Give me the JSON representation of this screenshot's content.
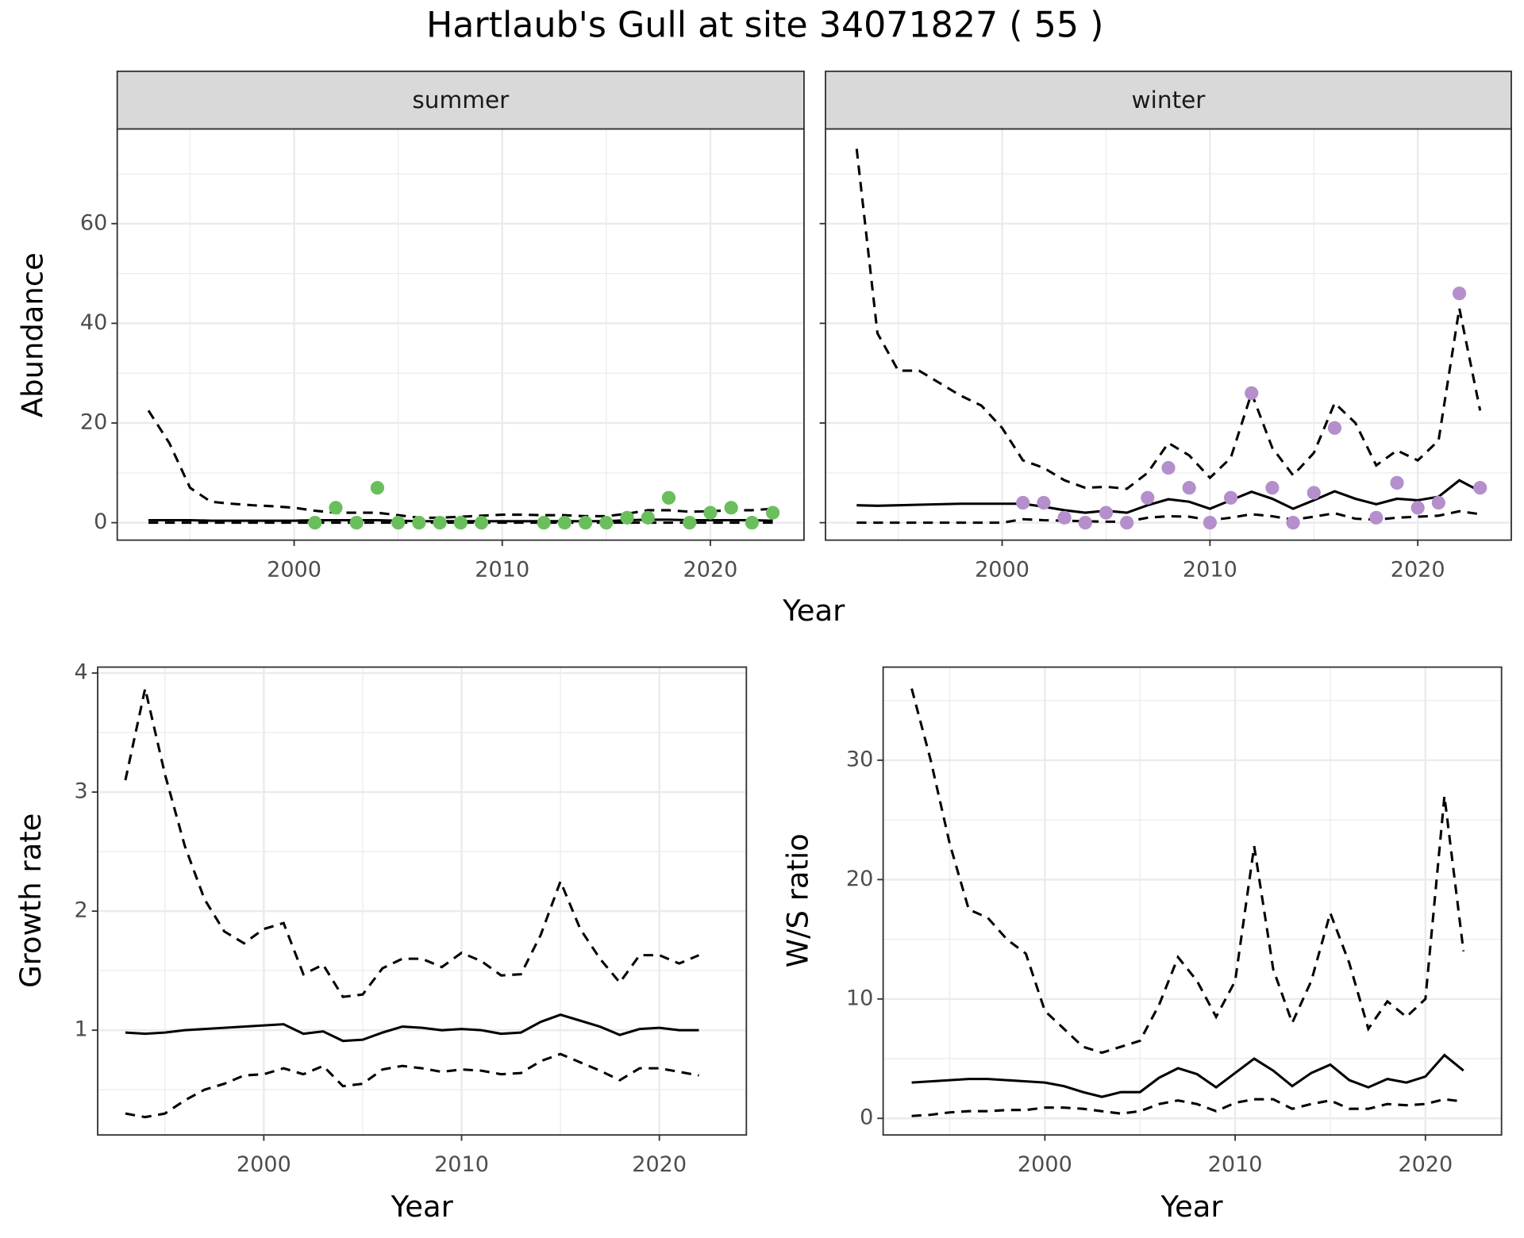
{
  "title": "Hartlaub's Gull at site 34071827 ( 55 )",
  "chart_data": [
    {
      "type": "line",
      "facet": "summer",
      "xlabel": "Year",
      "ylabel": "Abundance",
      "xlim": [
        1991.5,
        2024.5
      ],
      "xticks": [
        2000,
        2010,
        2020
      ],
      "xminor": [
        1995,
        2005,
        2015
      ],
      "ylim": [
        -3.5,
        79
      ],
      "yticks": [
        0,
        20,
        40,
        60
      ],
      "yminor": [
        10,
        30,
        50,
        70
      ],
      "grid": true,
      "x": [
        1993,
        1994,
        1995,
        1996,
        1997,
        1998,
        1999,
        2000,
        2001,
        2002,
        2003,
        2004,
        2005,
        2006,
        2007,
        2008,
        2009,
        2010,
        2011,
        2012,
        2013,
        2014,
        2015,
        2016,
        2017,
        2018,
        2019,
        2020,
        2021,
        2022,
        2023
      ],
      "series": [
        {
          "color": "#000000",
          "dash": "dashed",
          "values": [
            22.5,
            16,
            7,
            4.2,
            3.8,
            3.5,
            3.3,
            3,
            2.4,
            2,
            2,
            2,
            1.5,
            1,
            1,
            1.2,
            1.4,
            1.6,
            1.6,
            1.5,
            1.5,
            1.3,
            1.3,
            1.8,
            2.5,
            2.5,
            2.2,
            2.3,
            2.5,
            2.5,
            2.8
          ]
        },
        {
          "color": "#000000",
          "dash": "solid",
          "values": [
            0.5,
            0.5,
            0.5,
            0.4,
            0.4,
            0.4,
            0.4,
            0.4,
            0.5,
            0.5,
            0.5,
            0.5,
            0.4,
            0.3,
            0.3,
            0.3,
            0.3,
            0.3,
            0.3,
            0.3,
            0.3,
            0.3,
            0.3,
            0.5,
            0.6,
            0.6,
            0.5,
            0.5,
            0.5,
            0.5,
            0.4
          ]
        },
        {
          "color": "#000000",
          "dash": "dashed",
          "values": [
            0,
            0,
            0,
            0,
            0,
            0,
            0,
            0,
            0,
            0,
            0,
            0,
            0,
            0,
            0,
            0,
            0,
            0,
            0,
            0,
            0,
            0,
            0,
            0,
            0,
            0,
            0,
            0,
            0,
            0,
            0
          ]
        },
        {
          "color": "#6ABF5C",
          "marker": "point",
          "x": [
            2001,
            2002,
            2003,
            2004,
            2005,
            2006,
            2007,
            2008,
            2009,
            2012,
            2013,
            2014,
            2015,
            2016,
            2017,
            2018,
            2019,
            2020,
            2021,
            2022,
            2023
          ],
          "values": [
            0,
            3,
            0,
            7,
            0,
            0,
            0,
            0,
            0,
            0,
            0,
            0,
            0,
            1,
            1,
            5,
            0,
            2,
            3,
            0,
            2
          ]
        }
      ]
    },
    {
      "type": "line",
      "facet": "winter",
      "sharey": true,
      "xlim": [
        1991.5,
        2024.5
      ],
      "xticks": [
        2000,
        2010,
        2020
      ],
      "xminor": [
        1995,
        2005,
        2015
      ],
      "x": [
        1993,
        1994,
        1995,
        1996,
        1997,
        1998,
        1999,
        2000,
        2001,
        2002,
        2003,
        2004,
        2005,
        2006,
        2007,
        2008,
        2009,
        2010,
        2011,
        2012,
        2013,
        2014,
        2015,
        2016,
        2017,
        2018,
        2019,
        2020,
        2021,
        2022,
        2023
      ],
      "series": [
        {
          "color": "#000000",
          "dash": "dashed",
          "values": [
            75,
            38,
            30.5,
            30.5,
            28,
            25.5,
            23.5,
            19,
            12.5,
            11,
            8.5,
            7,
            7.2,
            6.8,
            10,
            16,
            13.5,
            9,
            13,
            26,
            15,
            9.5,
            14,
            24,
            20,
            11.5,
            14.5,
            12.5,
            16.5,
            43,
            22.5
          ]
        },
        {
          "color": "#000000",
          "dash": "solid",
          "values": [
            3.5,
            3.4,
            3.5,
            3.6,
            3.7,
            3.8,
            3.8,
            3.8,
            3.8,
            3.2,
            2.5,
            2,
            2.4,
            2,
            3.5,
            4.7,
            4.2,
            2.8,
            4.5,
            6.2,
            4.8,
            2.8,
            4.5,
            6.3,
            4.8,
            3.7,
            4.8,
            4.5,
            5.2,
            8.5,
            6.3
          ]
        },
        {
          "color": "#000000",
          "dash": "dashed",
          "values": [
            0,
            0,
            0,
            0,
            0,
            0,
            0,
            0,
            0.7,
            0.5,
            0.4,
            0.3,
            0.2,
            0.2,
            1,
            1.3,
            1.2,
            0.5,
            1,
            1.7,
            1.3,
            0.6,
            1.2,
            1.9,
            0.8,
            0.6,
            1,
            1.2,
            1.4,
            2.3,
            1.7
          ]
        },
        {
          "color": "#B48FCC",
          "marker": "point",
          "x": [
            2001,
            2002,
            2003,
            2004,
            2005,
            2006,
            2007,
            2008,
            2009,
            2010,
            2011,
            2012,
            2013,
            2014,
            2015,
            2016,
            2018,
            2019,
            2020,
            2021,
            2022,
            2023
          ],
          "values": [
            4,
            4,
            1,
            0,
            2,
            0,
            5,
            11,
            7,
            0,
            5,
            26,
            7,
            0,
            6,
            19,
            1,
            8,
            3,
            4,
            46,
            7
          ]
        }
      ]
    },
    {
      "type": "line",
      "xlabel": "Year",
      "ylabel": "Growth rate",
      "xlim": [
        1991.6,
        2024.4
      ],
      "xticks": [
        2000,
        2010,
        2020
      ],
      "xminor": [
        1995,
        2005,
        2015
      ],
      "ylim": [
        0.12,
        4.05
      ],
      "yticks": [
        1,
        2,
        3,
        4
      ],
      "yminor": [
        0.5,
        1.5,
        2.5,
        3.5
      ],
      "grid": true,
      "x": [
        1993,
        1994,
        1995,
        1996,
        1997,
        1998,
        1999,
        2000,
        2001,
        2002,
        2003,
        2004,
        2005,
        2006,
        2007,
        2008,
        2009,
        2010,
        2011,
        2012,
        2013,
        2014,
        2015,
        2016,
        2017,
        2018,
        2019,
        2020,
        2021,
        2022
      ],
      "series": [
        {
          "color": "#000000",
          "dash": "dashed",
          "values": [
            3.1,
            3.87,
            3.15,
            2.55,
            2.1,
            1.83,
            1.73,
            1.85,
            1.9,
            1.47,
            1.55,
            1.28,
            1.3,
            1.52,
            1.6,
            1.6,
            1.53,
            1.65,
            1.58,
            1.46,
            1.47,
            1.8,
            2.25,
            1.85,
            1.6,
            1.4,
            1.63,
            1.63,
            1.56,
            1.63
          ]
        },
        {
          "color": "#000000",
          "dash": "solid",
          "values": [
            0.98,
            0.97,
            0.98,
            1.0,
            1.01,
            1.02,
            1.03,
            1.04,
            1.05,
            0.97,
            0.99,
            0.91,
            0.92,
            0.98,
            1.03,
            1.02,
            1.0,
            1.01,
            1.0,
            0.97,
            0.98,
            1.07,
            1.13,
            1.08,
            1.03,
            0.96,
            1.01,
            1.02,
            1.0,
            1.0
          ]
        },
        {
          "color": "#000000",
          "dash": "dashed",
          "values": [
            0.3,
            0.27,
            0.3,
            0.41,
            0.5,
            0.55,
            0.62,
            0.63,
            0.68,
            0.63,
            0.7,
            0.53,
            0.55,
            0.67,
            0.7,
            0.68,
            0.65,
            0.67,
            0.66,
            0.63,
            0.64,
            0.74,
            0.8,
            0.73,
            0.66,
            0.58,
            0.68,
            0.68,
            0.65,
            0.62
          ]
        }
      ]
    },
    {
      "type": "line",
      "xlabel": "Year",
      "ylabel": "W/S ratio",
      "xlim": [
        1991.5,
        2024.0
      ],
      "xticks": [
        2000,
        2010,
        2020
      ],
      "xminor": [
        1995,
        2005,
        2015
      ],
      "ylim": [
        -1.39,
        37.8
      ],
      "yticks": [
        0,
        10,
        20,
        30
      ],
      "yminor": [
        5,
        15,
        25,
        35
      ],
      "grid": true,
      "x": [
        1993,
        1994,
        1995,
        1996,
        1997,
        1998,
        1999,
        2000,
        2001,
        2002,
        2003,
        2004,
        2005,
        2006,
        2007,
        2008,
        2009,
        2010,
        2011,
        2012,
        2013,
        2014,
        2015,
        2016,
        2017,
        2018,
        2019,
        2020,
        2021,
        2022
      ],
      "series": [
        {
          "color": "#000000",
          "dash": "dashed",
          "values": [
            36,
            30,
            23,
            17.5,
            16.8,
            15,
            13.8,
            9,
            7.5,
            6,
            5.5,
            6,
            6.5,
            9.5,
            13.5,
            11.5,
            8.5,
            11.5,
            22.8,
            12.5,
            8,
            11.5,
            17.2,
            13,
            7.5,
            9.8,
            8.5,
            10,
            27,
            14
          ]
        },
        {
          "color": "#000000",
          "dash": "solid",
          "values": [
            3,
            3.1,
            3.2,
            3.3,
            3.3,
            3.2,
            3.1,
            3.0,
            2.7,
            2.2,
            1.8,
            2.2,
            2.2,
            3.4,
            4.2,
            3.7,
            2.6,
            3.8,
            5.0,
            4.0,
            2.7,
            3.8,
            4.5,
            3.2,
            2.6,
            3.3,
            3.0,
            3.5,
            5.3,
            4.0
          ]
        },
        {
          "color": "#000000",
          "dash": "dashed",
          "values": [
            0.2,
            0.3,
            0.5,
            0.6,
            0.6,
            0.7,
            0.7,
            0.9,
            0.9,
            0.8,
            0.6,
            0.4,
            0.6,
            1.2,
            1.5,
            1.2,
            0.6,
            1.3,
            1.6,
            1.6,
            0.8,
            1.2,
            1.5,
            0.8,
            0.8,
            1.2,
            1.1,
            1.2,
            1.6,
            1.4
          ]
        }
      ]
    }
  ]
}
